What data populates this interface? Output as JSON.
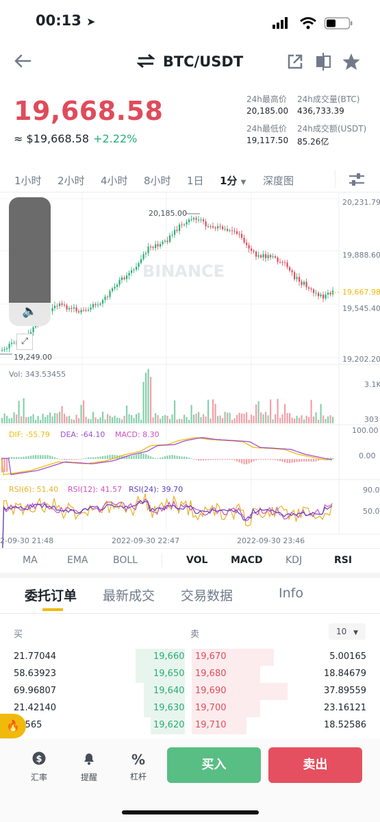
{
  "status": {
    "time": "00:13"
  },
  "header": {
    "title": "BTC/USDT"
  },
  "ticker": {
    "price": "19,668.58",
    "usd_price": "≈ $19,668.58",
    "change": "+2.22%",
    "high_label": "24h最高价",
    "high": "20,185.00",
    "vol_btc_label": "24h成交量(BTC)",
    "vol_btc": "436,733.39",
    "low_label": "24h最低价",
    "low": "19,117.50",
    "vol_usdt_label": "24h成交额(USDT)",
    "vol_usdt": "85.26亿"
  },
  "timeframes": [
    "1小时",
    "2小时",
    "4小时",
    "8小时",
    "1日",
    "1分",
    "深度图"
  ],
  "chart": {
    "watermark": "BINANCE",
    "price_axis": [
      "20,231.79",
      "19,888.60",
      "19,545.40",
      "19,202.20"
    ],
    "current_price": "19,667.98",
    "high_marker": "20,185.00",
    "low_marker": "19,249.00",
    "vol_label": "Vol: 343.53455",
    "vol_axis": [
      "3.1K",
      "303"
    ],
    "macd_labels": {
      "dif": "DIF: -55.79",
      "dea": "DEA: -64.10",
      "macd": "MACD: 8.30"
    },
    "macd_axis": [
      "100.00",
      "0.00"
    ],
    "rsi_labels": {
      "r6": "RSI(6): 51.40",
      "r12": "RSI(12): 41.57",
      "r24": "RSI(24): 39.70"
    },
    "rsi_axis": [
      "90.0",
      "50.0"
    ],
    "time_axis": [
      "2-09-30 21:48",
      "2022-09-30 22:47",
      "2022-09-30 23:46"
    ]
  },
  "indicators": {
    "ma": "MA",
    "ema": "EMA",
    "boll": "BOLL",
    "vol": "VOL",
    "macd": "MACD",
    "kdj": "KDJ",
    "rsi": "RSI"
  },
  "sections": {
    "orders": "委托订单",
    "trades": "最新成交",
    "data": "交易数据",
    "info": "Info"
  },
  "orderbook": {
    "buy_label": "买",
    "sell_label": "卖",
    "depth": "10",
    "rows": [
      {
        "bid_qty": "21.77044",
        "bid": "19,660",
        "ask": "19,670",
        "ask_qty": "5.00165"
      },
      {
        "bid_qty": "58.63923",
        "bid": "19,650",
        "ask": "19,680",
        "ask_qty": "18.84679"
      },
      {
        "bid_qty": "69.96807",
        "bid": "19,640",
        "ask": "19,690",
        "ask_qty": "37.89559"
      },
      {
        "bid_qty": "21.42140",
        "bid": "19,630",
        "ask": "19,700",
        "ask_qty": "23.16121"
      },
      {
        "bid_qty": "42565",
        "bid": "19,620",
        "ask": "19,710",
        "ask_qty": "18.52586"
      }
    ]
  },
  "bottom": {
    "rate": "汇率",
    "alert": "提醒",
    "leverage": "杠杆",
    "buy": "买入",
    "sell": "卖出"
  },
  "colors": {
    "up": "#27ae74",
    "down": "#e04b5a",
    "accent": "#f0b90b"
  },
  "icons": {
    "back": "arrow-left-icon",
    "swap": "swap-icon",
    "share": "share-icon",
    "compare": "compare-icon",
    "star": "star-icon",
    "settings": "sliders-icon"
  }
}
